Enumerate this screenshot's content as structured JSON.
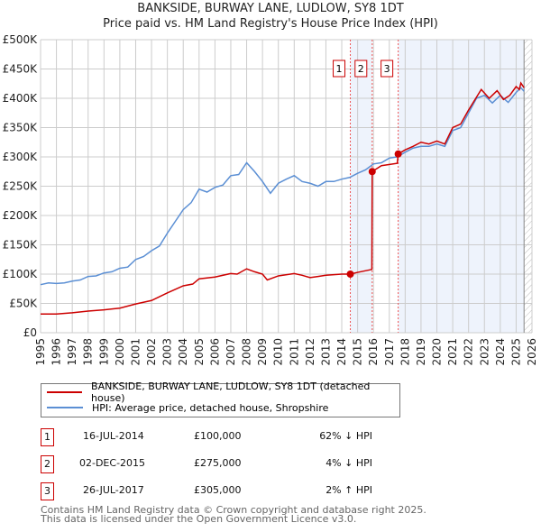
{
  "chart_data": {
    "type": "line",
    "title": "BANKSIDE, BURWAY LANE, LUDLOW, SY8 1DT",
    "subtitle": "Price paid vs. HM Land Registry's House Price Index (HPI)",
    "xlim": [
      1995,
      2026
    ],
    "ylim": [
      0,
      500000
    ],
    "y_ticks": [
      "£0",
      "£50K",
      "£100K",
      "£150K",
      "£200K",
      "£250K",
      "£300K",
      "£350K",
      "£400K",
      "£450K",
      "£500K"
    ],
    "x_ticks": [
      "1995",
      "1996",
      "1997",
      "1998",
      "1999",
      "2000",
      "2001",
      "2002",
      "2003",
      "2004",
      "2005",
      "2006",
      "2007",
      "2008",
      "2009",
      "2010",
      "2011",
      "2012",
      "2013",
      "2014",
      "2015",
      "2016",
      "2017",
      "2018",
      "2019",
      "2020",
      "2021",
      "2022",
      "2023",
      "2024",
      "2025",
      "2026"
    ],
    "grid": true,
    "series": [
      {
        "name": "BANKSIDE, BURWAY LANE, LUDLOW, SY8 1DT (detached house)",
        "color": "#cc0000",
        "x": [
          1995,
          1996,
          1997,
          1998,
          1999,
          2000,
          2001,
          2002,
          2003,
          2004,
          2004.6,
          2005,
          2006,
          2007,
          2007.4,
          2008,
          2008.5,
          2009,
          2009.3,
          2010,
          2011,
          2011.5,
          2012,
          2012.5,
          2013,
          2014,
          2014.54,
          2015,
          2015.9,
          2015.92,
          2016.5,
          2017.5,
          2017.56,
          2018,
          2018.5,
          2019,
          2019.5,
          2020,
          2020.5,
          2021,
          2021.5,
          2022,
          2022.8,
          2023.3,
          2023.8,
          2024.2,
          2024.6,
          2025,
          2025.2,
          2025.3,
          2025.5
        ],
        "y": [
          32000,
          32000,
          34000,
          37000,
          39000,
          42000,
          49000,
          55000,
          68000,
          80000,
          83000,
          92000,
          95000,
          101000,
          100000,
          109000,
          104000,
          100000,
          90000,
          97000,
          101000,
          98000,
          94000,
          96000,
          98000,
          100000,
          100000,
          103000,
          108000,
          275000,
          285000,
          289000,
          305000,
          312000,
          318000,
          325000,
          322000,
          327000,
          322000,
          350000,
          356000,
          380000,
          415000,
          400000,
          413000,
          398000,
          405000,
          420000,
          415000,
          426000,
          418000
        ]
      },
      {
        "name": "HPI: Average price, detached house, Shropshire",
        "color": "#5b8fd4",
        "x": [
          1995,
          1995.5,
          1996,
          1996.5,
          1997,
          1997.5,
          1998,
          1998.5,
          1999,
          1999.5,
          2000,
          2000.5,
          2001,
          2001.5,
          2002,
          2002.5,
          2003,
          2003.5,
          2004,
          2004.5,
          2005,
          2005.5,
          2006,
          2006.5,
          2007,
          2007.5,
          2008,
          2008.5,
          2009,
          2009.5,
          2010,
          2010.5,
          2011,
          2011.5,
          2012,
          2012.5,
          2013,
          2013.5,
          2014,
          2014.5,
          2015,
          2015.5,
          2016,
          2016.5,
          2017,
          2017.5,
          2018,
          2018.5,
          2019,
          2019.5,
          2020,
          2020.5,
          2021,
          2021.5,
          2022,
          2022.5,
          2023,
          2023.5,
          2024,
          2024.5,
          2025,
          2025.3,
          2025.5
        ],
        "y": [
          82000,
          85000,
          84000,
          85000,
          88000,
          90000,
          96000,
          97000,
          102000,
          104000,
          110000,
          112000,
          125000,
          130000,
          140000,
          148000,
          170000,
          190000,
          210000,
          222000,
          245000,
          240000,
          248000,
          252000,
          268000,
          270000,
          290000,
          275000,
          258000,
          238000,
          255000,
          262000,
          268000,
          258000,
          255000,
          250000,
          258000,
          258000,
          262000,
          265000,
          272000,
          278000,
          288000,
          290000,
          298000,
          300000,
          308000,
          315000,
          318000,
          318000,
          322000,
          318000,
          345000,
          350000,
          375000,
          400000,
          405000,
          392000,
          405000,
          393000,
          410000,
          418000,
          412000
        ]
      }
    ],
    "sales": [
      {
        "label": "1",
        "x": 2014.54,
        "date": "16-JUL-2014",
        "price": 100000,
        "price_text": "£100,000",
        "hpi_text": "62% ↓ HPI"
      },
      {
        "label": "2",
        "x": 2015.92,
        "date": "02-DEC-2015",
        "price": 275000,
        "price_text": "£275,000",
        "hpi_text": "4% ↓ HPI"
      },
      {
        "label": "3",
        "x": 2017.56,
        "date": "26-JUL-2017",
        "price": 305000,
        "price_text": "£305,000",
        "hpi_text": "2% ↑ HPI"
      }
    ],
    "shaded_ranges": [
      [
        2014.54,
        2015.92
      ],
      [
        2017.56,
        2025.5
      ]
    ],
    "forecast_from": 2025.5
  },
  "legend": {
    "red": "BANKSIDE, BURWAY LANE, LUDLOW, SY8 1DT (detached house)",
    "blue": "HPI: Average price, detached house, Shropshire"
  },
  "footer": {
    "line1": "Contains HM Land Registry data © Crown copyright and database right 2025.",
    "line2": "This data is licensed under the Open Government Licence v3.0."
  }
}
